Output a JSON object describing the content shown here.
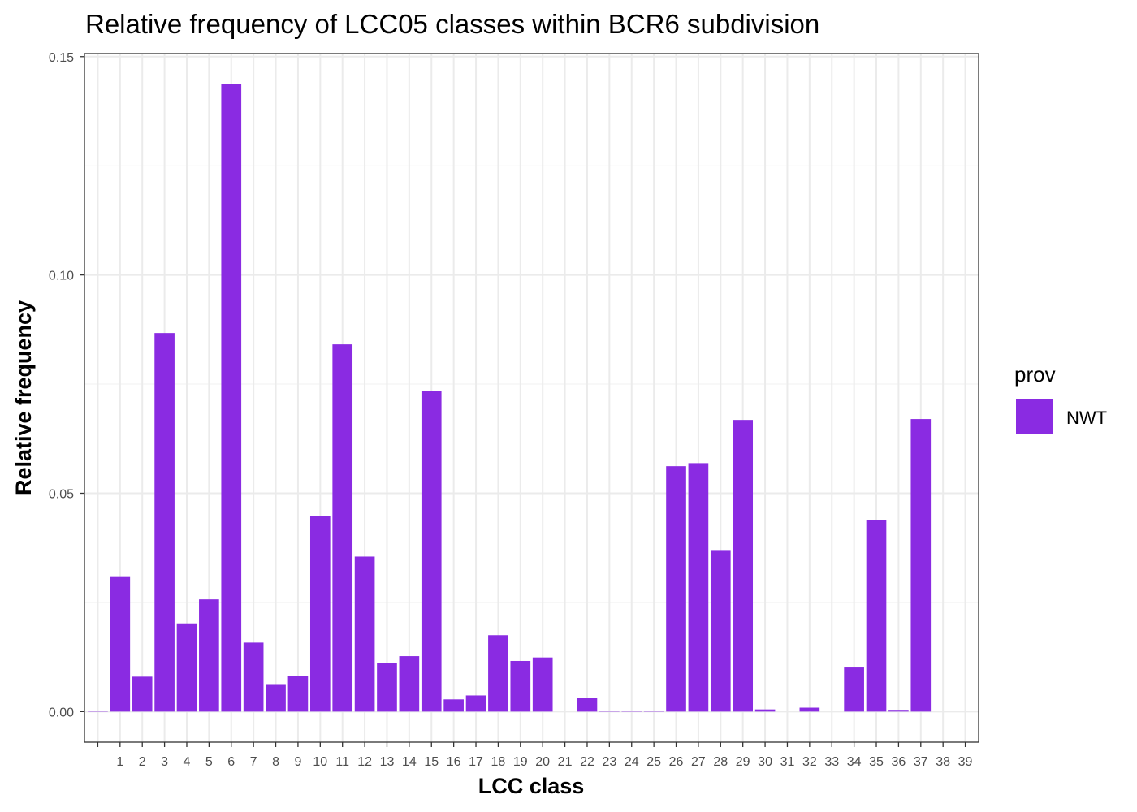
{
  "chart_data": {
    "type": "bar",
    "title": "Relative frequency of LCC05 classes within BCR6 subdivision",
    "xlabel": "LCC class",
    "ylabel": "Relative frequency",
    "categories": [
      "",
      "1",
      "2",
      "3",
      "4",
      "5",
      "6",
      "7",
      "8",
      "9",
      "10",
      "11",
      "12",
      "13",
      "14",
      "15",
      "16",
      "17",
      "18",
      "19",
      "20",
      "21",
      "22",
      "23",
      "24",
      "25",
      "26",
      "27",
      "28",
      "29",
      "30",
      "31",
      "32",
      "33",
      "34",
      "35",
      "36",
      "37",
      "38",
      "39"
    ],
    "series": [
      {
        "name": "NWT",
        "values": [
          0.0002,
          0.031,
          0.008,
          0.0867,
          0.0202,
          0.0257,
          0.1437,
          0.0158,
          0.0063,
          0.0082,
          0.0448,
          0.0841,
          0.0355,
          0.0111,
          0.0127,
          0.0735,
          0.0028,
          0.0037,
          0.0175,
          0.0116,
          0.0124,
          0.0,
          0.0031,
          0.0002,
          0.0002,
          0.0002,
          0.0562,
          0.0569,
          0.037,
          0.0668,
          0.0005,
          0.0,
          0.0009,
          0.0,
          0.0101,
          0.0438,
          0.0004,
          0.067,
          0.0,
          0.0
        ]
      }
    ],
    "ylim": [
      -0.007,
      0.1507
    ],
    "yticks": [
      0.0,
      0.05,
      0.1,
      0.15
    ],
    "ytick_labels": [
      "0.00",
      "0.05",
      "0.10",
      "0.15"
    ],
    "grid": true,
    "legend": {
      "title": "prov",
      "placement": "right",
      "entries": [
        "NWT"
      ]
    },
    "bar_color": "#8A2BE2"
  }
}
